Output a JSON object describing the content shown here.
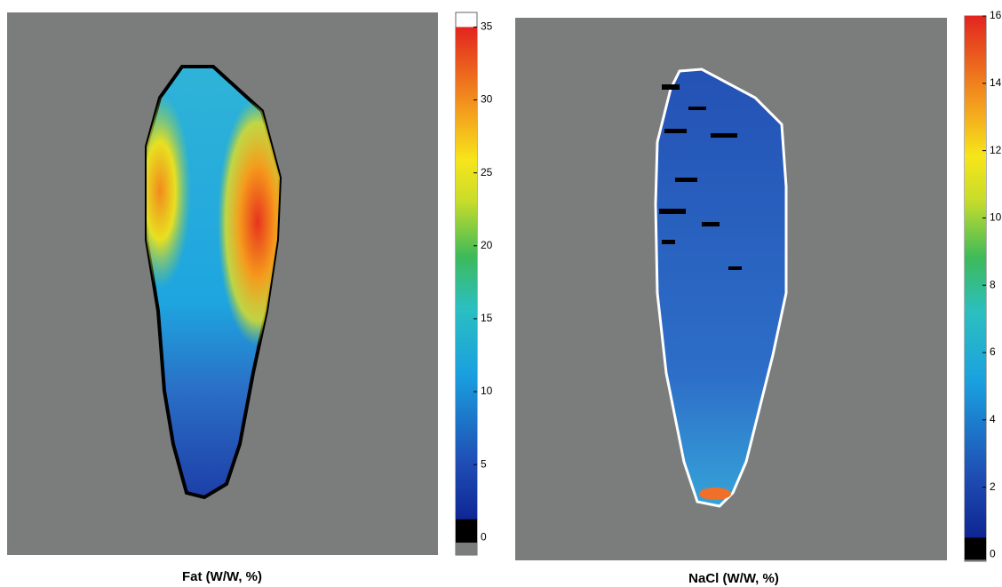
{
  "chart_data": [
    {
      "type": "heatmap",
      "title": "Fat (W/W, %)",
      "ylim": [
        -1.2,
        36
      ],
      "yticks": [
        0,
        5,
        10,
        15,
        20,
        25,
        30,
        35
      ]
    },
    {
      "type": "heatmap",
      "title": "NaCl (W/W, %)",
      "ylim": [
        -0.2,
        16
      ],
      "yticks": [
        0,
        2,
        4,
        6,
        8,
        10,
        12,
        14,
        16
      ]
    }
  ]
}
